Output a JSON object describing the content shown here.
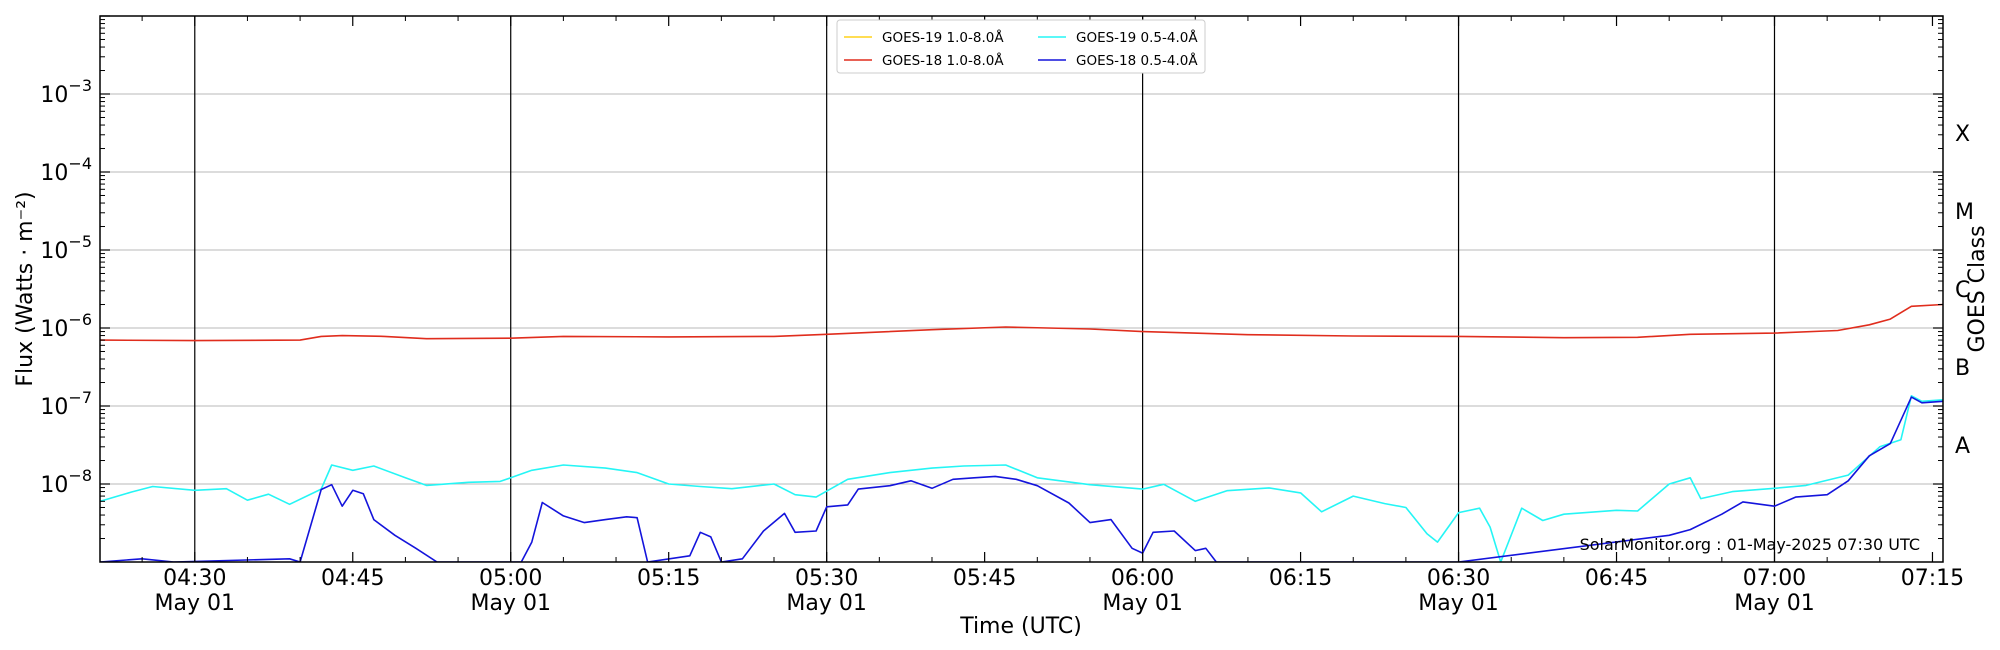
{
  "chart_data": {
    "type": "line",
    "ylabel": "Flux (Watts · m⁻²)",
    "xlabel": "Time (UTC)",
    "right_ylabel": "GOES Class",
    "watermark": "SolarMonitor.org : 01-May-2025 07:30 UTC",
    "y_scale": "log",
    "ylim": [
      1e-09,
      0.01
    ],
    "xlim": [
      "04:21",
      "07:16"
    ],
    "y_ticks": [
      {
        "value": 1e-08,
        "base": "10",
        "exp": "−8"
      },
      {
        "value": 1e-07,
        "base": "10",
        "exp": "−7"
      },
      {
        "value": 1e-06,
        "base": "10",
        "exp": "−6"
      },
      {
        "value": 1e-05,
        "base": "10",
        "exp": "−5"
      },
      {
        "value": 0.0001,
        "base": "10",
        "exp": "−4"
      },
      {
        "value": 0.001,
        "base": "10",
        "exp": "−3"
      }
    ],
    "x_ticks": [
      {
        "time": "04:30",
        "date": "May 01"
      },
      {
        "time": "04:45",
        "date": ""
      },
      {
        "time": "05:00",
        "date": "May 01"
      },
      {
        "time": "05:15",
        "date": ""
      },
      {
        "time": "05:30",
        "date": "May 01"
      },
      {
        "time": "05:45",
        "date": ""
      },
      {
        "time": "06:00",
        "date": "May 01"
      },
      {
        "time": "06:15",
        "date": ""
      },
      {
        "time": "06:30",
        "date": "May 01"
      },
      {
        "time": "06:45",
        "date": ""
      },
      {
        "time": "07:00",
        "date": "May 01"
      },
      {
        "time": "07:15",
        "date": ""
      }
    ],
    "vertical_lines": [
      "04:30",
      "05:00",
      "05:30",
      "06:00",
      "06:30",
      "07:00"
    ],
    "goes_classes": [
      {
        "label": "A",
        "lower": 1e-08
      },
      {
        "label": "B",
        "lower": 1e-07
      },
      {
        "label": "C",
        "lower": 1e-06
      },
      {
        "label": "M",
        "lower": 1e-05
      },
      {
        "label": "X",
        "lower": 0.0001
      }
    ],
    "grid": "horizontal",
    "legend_position": "top-center",
    "series": [
      {
        "name": "GOES-19 1.0-8.0Å",
        "color": "#ffd21a",
        "visible_in_plot": false,
        "points": []
      },
      {
        "name": "GOES-18 1.0-8.0Å",
        "color": "#e02d1d",
        "points": [
          [
            "04:21",
            7e-07
          ],
          [
            "04:30",
            6.9e-07
          ],
          [
            "04:40",
            7e-07
          ],
          [
            "04:42",
            7.8e-07
          ],
          [
            "04:44",
            8e-07
          ],
          [
            "04:48",
            7.8e-07
          ],
          [
            "04:52",
            7.3e-07
          ],
          [
            "05:00",
            7.4e-07
          ],
          [
            "05:05",
            7.8e-07
          ],
          [
            "05:15",
            7.7e-07
          ],
          [
            "05:25",
            7.8e-07
          ],
          [
            "05:30",
            8.3e-07
          ],
          [
            "05:40",
            9.5e-07
          ],
          [
            "05:47",
            1.03e-06
          ],
          [
            "05:55",
            9.7e-07
          ],
          [
            "06:00",
            9e-07
          ],
          [
            "06:10",
            8.2e-07
          ],
          [
            "06:20",
            7.9e-07
          ],
          [
            "06:30",
            7.8e-07
          ],
          [
            "06:40",
            7.5e-07
          ],
          [
            "06:47",
            7.6e-07
          ],
          [
            "06:52",
            8.3e-07
          ],
          [
            "07:00",
            8.6e-07
          ],
          [
            "07:06",
            9.3e-07
          ],
          [
            "07:09",
            1.1e-06
          ],
          [
            "07:11",
            1.3e-06
          ],
          [
            "07:13",
            1.9e-06
          ],
          [
            "07:16",
            2e-06
          ]
        ]
      },
      {
        "name": "GOES-19 0.5-4.0Å",
        "color": "#25f5f5",
        "points": [
          [
            "04:21",
            6e-09
          ],
          [
            "04:24",
            7.9e-09
          ],
          [
            "04:26",
            9.3e-09
          ],
          [
            "04:30",
            8.3e-09
          ],
          [
            "04:33",
            8.7e-09
          ],
          [
            "04:35",
            6.2e-09
          ],
          [
            "04:37",
            7.4e-09
          ],
          [
            "04:39",
            5.5e-09
          ],
          [
            "04:42",
            8.6e-09
          ],
          [
            "04:43",
            1.75e-08
          ],
          [
            "04:45",
            1.5e-08
          ],
          [
            "04:47",
            1.7e-08
          ],
          [
            "04:50",
            1.2e-08
          ],
          [
            "04:52",
            9.6e-09
          ],
          [
            "04:56",
            1.05e-08
          ],
          [
            "04:59",
            1.08e-08
          ],
          [
            "05:00",
            1.2e-08
          ],
          [
            "05:02",
            1.5e-08
          ],
          [
            "05:05",
            1.75e-08
          ],
          [
            "05:09",
            1.6e-08
          ],
          [
            "05:12",
            1.4e-08
          ],
          [
            "05:15",
            1e-08
          ],
          [
            "05:18",
            9.3e-09
          ],
          [
            "05:21",
            8.7e-09
          ],
          [
            "05:25",
            1e-08
          ],
          [
            "05:27",
            7.3e-09
          ],
          [
            "05:29",
            6.8e-09
          ],
          [
            "05:32",
            1.15e-08
          ],
          [
            "05:36",
            1.4e-08
          ],
          [
            "05:40",
            1.6e-08
          ],
          [
            "05:43",
            1.7e-08
          ],
          [
            "05:47",
            1.75e-08
          ],
          [
            "05:50",
            1.2e-08
          ],
          [
            "05:55",
            9.8e-09
          ],
          [
            "06:00",
            8.6e-09
          ],
          [
            "06:02",
            9.9e-09
          ],
          [
            "06:05",
            6e-09
          ],
          [
            "06:08",
            8.2e-09
          ],
          [
            "06:12",
            8.9e-09
          ],
          [
            "06:15",
            7.7e-09
          ],
          [
            "06:17",
            4.4e-09
          ],
          [
            "06:20",
            7e-09
          ],
          [
            "06:23",
            5.6e-09
          ],
          [
            "06:25",
            5e-09
          ],
          [
            "06:27",
            2.3e-09
          ],
          [
            "06:28",
            1.8e-09
          ],
          [
            "06:30",
            4.3e-09
          ],
          [
            "06:32",
            4.9e-09
          ],
          [
            "06:33",
            2.8e-09
          ],
          [
            "06:34",
            1e-09
          ],
          [
            "06:36",
            4.9e-09
          ],
          [
            "06:38",
            3.4e-09
          ],
          [
            "06:40",
            4.1e-09
          ],
          [
            "06:45",
            4.6e-09
          ],
          [
            "06:47",
            4.5e-09
          ],
          [
            "06:50",
            1e-08
          ],
          [
            "06:52",
            1.2e-08
          ],
          [
            "06:53",
            6.5e-09
          ],
          [
            "06:56",
            8e-09
          ],
          [
            "07:00",
            8.8e-09
          ],
          [
            "07:03",
            9.6e-09
          ],
          [
            "07:07",
            1.3e-08
          ],
          [
            "07:10",
            3e-08
          ],
          [
            "07:12",
            3.7e-08
          ],
          [
            "07:13",
            1.35e-07
          ],
          [
            "07:14",
            1.15e-07
          ],
          [
            "07:16",
            1.2e-07
          ]
        ]
      },
      {
        "name": "GOES-18 0.5-4.0Å",
        "color": "#1414dc",
        "points": [
          [
            "04:21",
            1e-09
          ],
          [
            "04:25",
            1.1e-09
          ],
          [
            "04:28",
            1e-09
          ],
          [
            "04:39",
            1.1e-09
          ],
          [
            "04:40",
            1e-09
          ],
          [
            "04:42",
            8.5e-09
          ],
          [
            "04:43",
            9.8e-09
          ],
          [
            "04:44",
            5.2e-09
          ],
          [
            "04:45",
            8.3e-09
          ],
          [
            "04:46",
            7.5e-09
          ],
          [
            "04:47",
            3.5e-09
          ],
          [
            "04:49",
            2.2e-09
          ],
          [
            "04:51",
            1.5e-09
          ],
          [
            "04:53",
            1e-09
          ],
          [
            "05:01",
            1e-09
          ],
          [
            "05:02",
            1.8e-09
          ],
          [
            "05:03",
            5.8e-09
          ],
          [
            "05:05",
            3.9e-09
          ],
          [
            "05:07",
            3.2e-09
          ],
          [
            "05:09",
            3.5e-09
          ],
          [
            "05:11",
            3.8e-09
          ],
          [
            "05:12",
            3.7e-09
          ],
          [
            "05:13",
            1e-09
          ],
          [
            "05:17",
            1.2e-09
          ],
          [
            "05:18",
            2.4e-09
          ],
          [
            "05:19",
            2.1e-09
          ],
          [
            "05:20",
            1e-09
          ],
          [
            "05:22",
            1.1e-09
          ],
          [
            "05:24",
            2.5e-09
          ],
          [
            "05:26",
            4.2e-09
          ],
          [
            "05:27",
            2.4e-09
          ],
          [
            "05:29",
            2.5e-09
          ],
          [
            "05:30",
            5.1e-09
          ],
          [
            "05:32",
            5.4e-09
          ],
          [
            "05:33",
            8.6e-09
          ],
          [
            "05:36",
            9.5e-09
          ],
          [
            "05:38",
            1.1e-08
          ],
          [
            "05:40",
            8.8e-09
          ],
          [
            "05:42",
            1.15e-08
          ],
          [
            "05:44",
            1.2e-08
          ],
          [
            "05:46",
            1.25e-08
          ],
          [
            "05:48",
            1.15e-08
          ],
          [
            "05:50",
            9.5e-09
          ],
          [
            "05:53",
            5.7e-09
          ],
          [
            "05:55",
            3.2e-09
          ],
          [
            "05:57",
            3.5e-09
          ],
          [
            "05:59",
            1.5e-09
          ],
          [
            "06:00",
            1.3e-09
          ],
          [
            "06:01",
            2.4e-09
          ],
          [
            "06:03",
            2.5e-09
          ],
          [
            "06:05",
            1.4e-09
          ],
          [
            "06:06",
            1.5e-09
          ],
          [
            "06:07",
            1e-09
          ],
          [
            "06:30",
            1e-09
          ],
          [
            "06:50",
            2.2e-09
          ],
          [
            "06:52",
            2.6e-09
          ],
          [
            "06:55",
            4.1e-09
          ],
          [
            "06:57",
            5.9e-09
          ],
          [
            "07:00",
            5.2e-09
          ],
          [
            "07:02",
            6.8e-09
          ],
          [
            "07:05",
            7.3e-09
          ],
          [
            "07:07",
            1.1e-08
          ],
          [
            "07:09",
            2.3e-08
          ],
          [
            "07:11",
            3.3e-08
          ],
          [
            "07:13",
            1.3e-07
          ],
          [
            "07:14",
            1.1e-07
          ],
          [
            "07:16",
            1.15e-07
          ]
        ]
      }
    ]
  }
}
